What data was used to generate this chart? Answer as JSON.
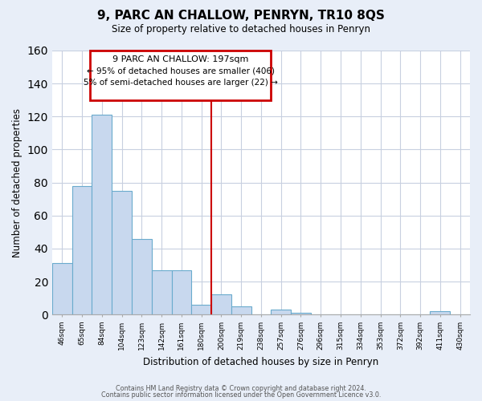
{
  "title": "9, PARC AN CHALLOW, PENRYN, TR10 8QS",
  "subtitle": "Size of property relative to detached houses in Penryn",
  "xlabel": "Distribution of detached houses by size in Penryn",
  "ylabel": "Number of detached properties",
  "bar_labels": [
    "46sqm",
    "65sqm",
    "84sqm",
    "104sqm",
    "123sqm",
    "142sqm",
    "161sqm",
    "180sqm",
    "200sqm",
    "219sqm",
    "238sqm",
    "257sqm",
    "276sqm",
    "296sqm",
    "315sqm",
    "334sqm",
    "353sqm",
    "372sqm",
    "392sqm",
    "411sqm",
    "430sqm"
  ],
  "bar_values": [
    31,
    78,
    121,
    75,
    46,
    27,
    27,
    6,
    12,
    5,
    0,
    3,
    1,
    0,
    0,
    0,
    0,
    0,
    0,
    2,
    0
  ],
  "bar_color": "#c8d8ee",
  "bar_edge_color": "#6aabcd",
  "annotation_title": "9 PARC AN CHALLOW: 197sqm",
  "annotation_line1": "← 95% of detached houses are smaller (406)",
  "annotation_line2": "5% of semi-detached houses are larger (22) →",
  "vline_x_index": 8,
  "vline_color": "#cc0000",
  "ylim": [
    0,
    160
  ],
  "yticks": [
    0,
    20,
    40,
    60,
    80,
    100,
    120,
    140,
    160
  ],
  "footer1": "Contains HM Land Registry data © Crown copyright and database right 2024.",
  "footer2": "Contains public sector information licensed under the Open Government Licence v3.0.",
  "bg_color": "#e8eef8",
  "plot_bg_color": "#ffffff",
  "grid_color": "#c8d0e0"
}
